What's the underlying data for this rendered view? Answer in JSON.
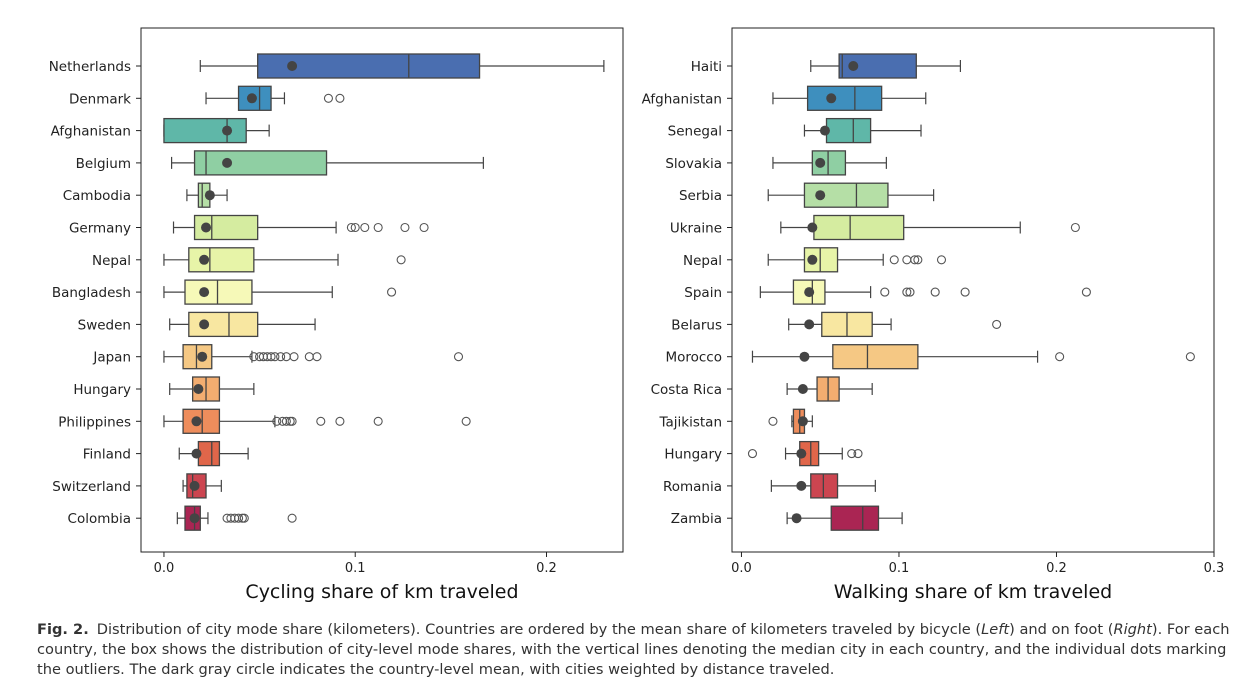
{
  "chart_data": [
    {
      "type": "box",
      "xlabel": "Cycling share of km traveled",
      "xlim": [
        -0.012,
        0.24
      ],
      "xticks": [
        0.0,
        0.1,
        0.2
      ],
      "xtick_labels": [
        "0.0",
        "0.1",
        "0.2"
      ],
      "categories": [
        {
          "label": "Netherlands",
          "color": "#4a6eb0",
          "whisker_low": 0.019,
          "q1": 0.049,
          "median": 0.128,
          "q3": 0.165,
          "whisker_high": 0.23,
          "mean": 0.067,
          "outliers": []
        },
        {
          "label": "Denmark",
          "color": "#3e8fbe",
          "whisker_low": 0.022,
          "q1": 0.039,
          "median": 0.05,
          "q3": 0.056,
          "whisker_high": 0.063,
          "mean": 0.046,
          "outliers": [
            0.086,
            0.092
          ]
        },
        {
          "label": "Afghanistan",
          "color": "#5fb7a8",
          "whisker_low": 0.0,
          "q1": 0.0,
          "median": 0.033,
          "q3": 0.043,
          "whisker_high": 0.055,
          "mean": 0.033,
          "outliers": []
        },
        {
          "label": "Belgium",
          "color": "#8fcfa3",
          "whisker_low": 0.004,
          "q1": 0.016,
          "median": 0.022,
          "q3": 0.085,
          "whisker_high": 0.167,
          "mean": 0.033,
          "outliers": []
        },
        {
          "label": "Cambodia",
          "color": "#b5dfa6",
          "whisker_low": 0.012,
          "q1": 0.018,
          "median": 0.02,
          "q3": 0.024,
          "whisker_high": 0.033,
          "mean": 0.024,
          "outliers": []
        },
        {
          "label": "Germany",
          "color": "#d5eca0",
          "whisker_low": 0.005,
          "q1": 0.016,
          "median": 0.025,
          "q3": 0.049,
          "whisker_high": 0.09,
          "mean": 0.022,
          "outliers": [
            0.098,
            0.1,
            0.105,
            0.112,
            0.126,
            0.136
          ]
        },
        {
          "label": "Nepal",
          "color": "#e7f4a8",
          "whisker_low": 0.0,
          "q1": 0.013,
          "median": 0.024,
          "q3": 0.047,
          "whisker_high": 0.091,
          "mean": 0.021,
          "outliers": [
            0.124
          ]
        },
        {
          "label": "Bangladesh",
          "color": "#f6f9b8",
          "whisker_low": 0.0,
          "q1": 0.011,
          "median": 0.028,
          "q3": 0.046,
          "whisker_high": 0.088,
          "mean": 0.021,
          "outliers": [
            0.119
          ]
        },
        {
          "label": "Sweden",
          "color": "#f8e7a1",
          "whisker_low": 0.003,
          "q1": 0.013,
          "median": 0.034,
          "q3": 0.049,
          "whisker_high": 0.079,
          "mean": 0.021,
          "outliers": []
        },
        {
          "label": "Japan",
          "color": "#f5c884",
          "whisker_low": 0.0,
          "q1": 0.01,
          "median": 0.017,
          "q3": 0.025,
          "whisker_high": 0.046,
          "mean": 0.02,
          "outliers": [
            0.047,
            0.05,
            0.052,
            0.054,
            0.056,
            0.058,
            0.061,
            0.064,
            0.068,
            0.076,
            0.08,
            0.154
          ]
        },
        {
          "label": "Hungary",
          "color": "#f3ad70",
          "whisker_low": 0.003,
          "q1": 0.015,
          "median": 0.022,
          "q3": 0.029,
          "whisker_high": 0.047,
          "mean": 0.018,
          "outliers": []
        },
        {
          "label": "Philippines",
          "color": "#ee8d5c",
          "whisker_low": 0.0,
          "q1": 0.01,
          "median": 0.02,
          "q3": 0.029,
          "whisker_high": 0.058,
          "mean": 0.017,
          "outliers": [
            0.059,
            0.062,
            0.064,
            0.066,
            0.067,
            0.082,
            0.092,
            0.112,
            0.158
          ]
        },
        {
          "label": "Finland",
          "color": "#e0664a",
          "whisker_low": 0.008,
          "q1": 0.018,
          "median": 0.025,
          "q3": 0.029,
          "whisker_high": 0.044,
          "mean": 0.017,
          "outliers": []
        },
        {
          "label": "Switzerland",
          "color": "#cc4550",
          "whisker_low": 0.01,
          "q1": 0.012,
          "median": 0.015,
          "q3": 0.022,
          "whisker_high": 0.03,
          "mean": 0.016,
          "outliers": []
        },
        {
          "label": "Colombia",
          "color": "#aa2553",
          "whisker_low": 0.007,
          "q1": 0.011,
          "median": 0.016,
          "q3": 0.019,
          "whisker_high": 0.023,
          "mean": 0.016,
          "outliers": [
            0.033,
            0.035,
            0.037,
            0.039,
            0.041,
            0.042,
            0.067
          ]
        }
      ]
    },
    {
      "type": "box",
      "xlabel": "Walking share of km traveled",
      "xlim": [
        -0.006,
        0.3
      ],
      "xticks": [
        0.0,
        0.1,
        0.2,
        0.3
      ],
      "xtick_labels": [
        "0.0",
        "0.1",
        "0.2",
        "0.3"
      ],
      "categories": [
        {
          "label": "Haiti",
          "color": "#4a6eb0",
          "whisker_low": 0.044,
          "q1": 0.062,
          "median": 0.064,
          "q3": 0.111,
          "whisker_high": 0.139,
          "mean": 0.071,
          "outliers": []
        },
        {
          "label": "Afghanistan",
          "color": "#3e8fbe",
          "whisker_low": 0.02,
          "q1": 0.042,
          "median": 0.072,
          "q3": 0.089,
          "whisker_high": 0.117,
          "mean": 0.057,
          "outliers": []
        },
        {
          "label": "Senegal",
          "color": "#5fb7a8",
          "whisker_low": 0.04,
          "q1": 0.054,
          "median": 0.071,
          "q3": 0.082,
          "whisker_high": 0.114,
          "mean": 0.053,
          "outliers": []
        },
        {
          "label": "Slovakia",
          "color": "#8fcfa3",
          "whisker_low": 0.02,
          "q1": 0.045,
          "median": 0.055,
          "q3": 0.066,
          "whisker_high": 0.092,
          "mean": 0.05,
          "outliers": []
        },
        {
          "label": "Serbia",
          "color": "#b5dfa6",
          "whisker_low": 0.017,
          "q1": 0.04,
          "median": 0.073,
          "q3": 0.093,
          "whisker_high": 0.122,
          "mean": 0.05,
          "outliers": []
        },
        {
          "label": "Ukraine",
          "color": "#d5eca0",
          "whisker_low": 0.025,
          "q1": 0.046,
          "median": 0.069,
          "q3": 0.103,
          "whisker_high": 0.177,
          "mean": 0.045,
          "outliers": [
            0.212
          ]
        },
        {
          "label": "Nepal",
          "color": "#e7f4a8",
          "whisker_low": 0.017,
          "q1": 0.04,
          "median": 0.05,
          "q3": 0.061,
          "whisker_high": 0.09,
          "mean": 0.045,
          "outliers": [
            0.097,
            0.105,
            0.11,
            0.112,
            0.127
          ]
        },
        {
          "label": "Spain",
          "color": "#f6f9b8",
          "whisker_low": 0.012,
          "q1": 0.033,
          "median": 0.045,
          "q3": 0.053,
          "whisker_high": 0.082,
          "mean": 0.043,
          "outliers": [
            0.091,
            0.105,
            0.107,
            0.123,
            0.142,
            0.219
          ]
        },
        {
          "label": "Belarus",
          "color": "#f8e7a1",
          "whisker_low": 0.03,
          "q1": 0.051,
          "median": 0.067,
          "q3": 0.083,
          "whisker_high": 0.095,
          "mean": 0.043,
          "outliers": [
            0.162
          ]
        },
        {
          "label": "Morocco",
          "color": "#f5c884",
          "whisker_low": 0.007,
          "q1": 0.058,
          "median": 0.08,
          "q3": 0.112,
          "whisker_high": 0.188,
          "mean": 0.04,
          "outliers": [
            0.202,
            0.285
          ]
        },
        {
          "label": "Costa Rica",
          "color": "#f3ad70",
          "whisker_low": 0.029,
          "q1": 0.048,
          "median": 0.055,
          "q3": 0.062,
          "whisker_high": 0.083,
          "mean": 0.039,
          "outliers": []
        },
        {
          "label": "Tajikistan",
          "color": "#ee8d5c",
          "whisker_low": 0.032,
          "q1": 0.033,
          "median": 0.037,
          "q3": 0.04,
          "whisker_high": 0.045,
          "mean": 0.039,
          "outliers": [
            0.02
          ]
        },
        {
          "label": "Hungary",
          "color": "#e0664a",
          "whisker_low": 0.028,
          "q1": 0.037,
          "median": 0.044,
          "q3": 0.049,
          "whisker_high": 0.064,
          "mean": 0.038,
          "outliers": [
            0.007,
            0.07,
            0.074
          ]
        },
        {
          "label": "Romania",
          "color": "#cc4550",
          "whisker_low": 0.019,
          "q1": 0.044,
          "median": 0.052,
          "q3": 0.061,
          "whisker_high": 0.085,
          "mean": 0.038,
          "outliers": []
        },
        {
          "label": "Zambia",
          "color": "#aa2553",
          "whisker_low": 0.029,
          "q1": 0.057,
          "median": 0.077,
          "q3": 0.087,
          "whisker_high": 0.102,
          "mean": 0.035,
          "outliers": []
        }
      ]
    }
  ],
  "caption": {
    "label": "Fig. 2.",
    "text": "Distribution of city mode share (kilometers). Countries are ordered by the mean share of kilometers traveled by bicycle (Left) and on foot (Right). For each country, the box shows the distribution of city-level mode shares, with the vertical lines denoting the median city in each country, and the individual dots marking the outliers. The dark gray circle indicates the country-level mean, with cities weighted by distance traveled."
  },
  "colors": {
    "mean_marker": "#444444",
    "box_edge": "#444444",
    "whisker": "#444444"
  }
}
